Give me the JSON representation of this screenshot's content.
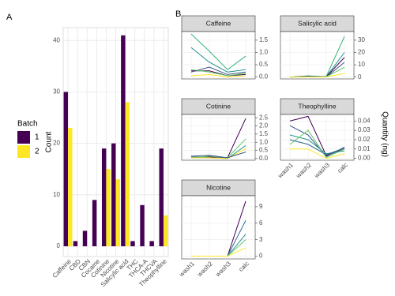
{
  "chart_data": [
    {
      "type": "bar",
      "label": "A",
      "y_label": "Count",
      "legend_title": "Batch",
      "categories": [
        "Caffeine",
        "CBD",
        "CBN",
        "Cocaine",
        "Cotinine",
        "Nicotine",
        "Salicylic acid",
        "THC",
        "THCA-A",
        "THCVA",
        "Theophylline"
      ],
      "series": [
        {
          "name": "1",
          "color": "#440154",
          "values": [
            30,
            1,
            3,
            9,
            19,
            20,
            41,
            1,
            8,
            1,
            19
          ]
        },
        {
          "name": "2",
          "color": "#FDE725",
          "values": [
            23,
            null,
            null,
            null,
            15,
            13,
            28,
            null,
            null,
            null,
            6
          ]
        }
      ],
      "ylim": [
        -2,
        42.5
      ],
      "yticks": [
        0,
        10,
        20,
        30,
        40
      ],
      "grid": true
    },
    {
      "type": "facet-line",
      "label": "B",
      "y_label": "Quantity (ng)",
      "categories": [
        "wash1",
        "wash2",
        "wash3",
        "calc"
      ],
      "facets": [
        {
          "title": "Caffeine",
          "ylim": [
            -0.08,
            1.85
          ],
          "yticks": [
            {
              "value": 0,
              "label": "0.0"
            },
            0.5,
            {
              "value": 1,
              "label": "1.0"
            },
            1.5
          ],
          "series": [
            {
              "color": "#35b779",
              "values": [
                1.75,
                1.05,
                0.3,
                0.85
              ]
            },
            {
              "color": "#21918c",
              "values": [
                1.2,
                0.6,
                0.2,
                0.3
              ]
            },
            {
              "color": "#3b528b",
              "values": [
                0.2,
                0.4,
                0.1,
                0.2
              ]
            },
            {
              "color": "#440154",
              "values": [
                0.25,
                0.25,
                0.05,
                0.1
              ]
            },
            {
              "color": "#5ec962",
              "values": [
                0.3,
                0.2,
                0.05,
                0.15
              ]
            },
            {
              "color": "#fde725",
              "values": [
                0.05,
                0.1,
                0.0,
                0.05
              ]
            }
          ]
        },
        {
          "title": "Salicylic acid",
          "ylim": [
            -1.5,
            37
          ],
          "yticks": [
            0,
            10,
            20,
            30
          ],
          "series": [
            {
              "color": "#35b779",
              "values": [
                0,
                0.5,
                0.5,
                33
              ]
            },
            {
              "color": "#21918c",
              "values": [
                0,
                1,
                0.3,
                20
              ]
            },
            {
              "color": "#440154",
              "values": [
                0,
                0.5,
                0.2,
                16
              ]
            },
            {
              "color": "#3b528b",
              "values": [
                0,
                0.2,
                0.1,
                12
              ]
            },
            {
              "color": "#5ec962",
              "values": [
                0,
                0.3,
                0.2,
                8
              ]
            },
            {
              "color": "#fde725",
              "values": [
                0,
                0.1,
                0.1,
                3
              ]
            }
          ]
        },
        {
          "title": "Cotinine",
          "ylim": [
            -0.1,
            2.7
          ],
          "yticks": [
            {
              "value": 0,
              "label": "0.0"
            },
            0.5,
            {
              "value": 1,
              "label": "1.0"
            },
            1.5,
            {
              "value": 2,
              "label": "2.0"
            },
            2.5
          ],
          "series": [
            {
              "color": "#440154",
              "values": [
                0.1,
                0.1,
                0.05,
                2.45
              ]
            },
            {
              "color": "#5ec962",
              "values": [
                0.05,
                0.15,
                0.05,
                1.2
              ]
            },
            {
              "color": "#21918c",
              "values": [
                0.1,
                0.05,
                0,
                0.8
              ]
            },
            {
              "color": "#fde725",
              "values": [
                0.05,
                0.05,
                0,
                0.6
              ]
            },
            {
              "color": "#3b528b",
              "values": [
                0.15,
                0.2,
                0.05,
                0.4
              ]
            }
          ]
        },
        {
          "title": "Theophylline",
          "ylim": [
            -0.002,
            0.047
          ],
          "yticks": [
            {
              "value": 0,
              "label": "0.00"
            },
            0.01,
            0.02,
            0.03,
            0.04
          ],
          "series": [
            {
              "color": "#440154",
              "values": [
                0.04,
                0.045,
                0.003,
                0.01
              ]
            },
            {
              "color": "#3b528b",
              "values": [
                0.035,
                0.025,
                0.002,
                0.012
              ]
            },
            {
              "color": "#21918c",
              "values": [
                0.025,
                0.02,
                0.005,
                0.008
              ]
            },
            {
              "color": "#5ec962",
              "values": [
                0.015,
                0.03,
                0.001,
                0.01
              ]
            },
            {
              "color": "#31688e",
              "values": [
                0.02,
                0.015,
                0.004,
                0.011
              ]
            },
            {
              "color": "#fde725",
              "values": [
                0.01,
                0.01,
                0.0,
                0.005
              ]
            }
          ]
        },
        {
          "title": "Nicotine",
          "ylim": [
            -0.5,
            11
          ],
          "yticks": [
            0,
            3,
            6,
            9
          ],
          "series": [
            {
              "color": "#440154",
              "values": [
                0,
                0,
                0,
                10
              ]
            },
            {
              "color": "#31688e",
              "values": [
                0,
                0,
                0,
                6.5
              ]
            },
            {
              "color": "#21918c",
              "values": [
                0,
                0,
                0,
                4
              ]
            },
            {
              "color": "#5ec962",
              "values": [
                0,
                0,
                0,
                3
              ]
            },
            {
              "color": "#fde725",
              "values": [
                0,
                0,
                0,
                1.5
              ]
            }
          ]
        }
      ]
    }
  ]
}
